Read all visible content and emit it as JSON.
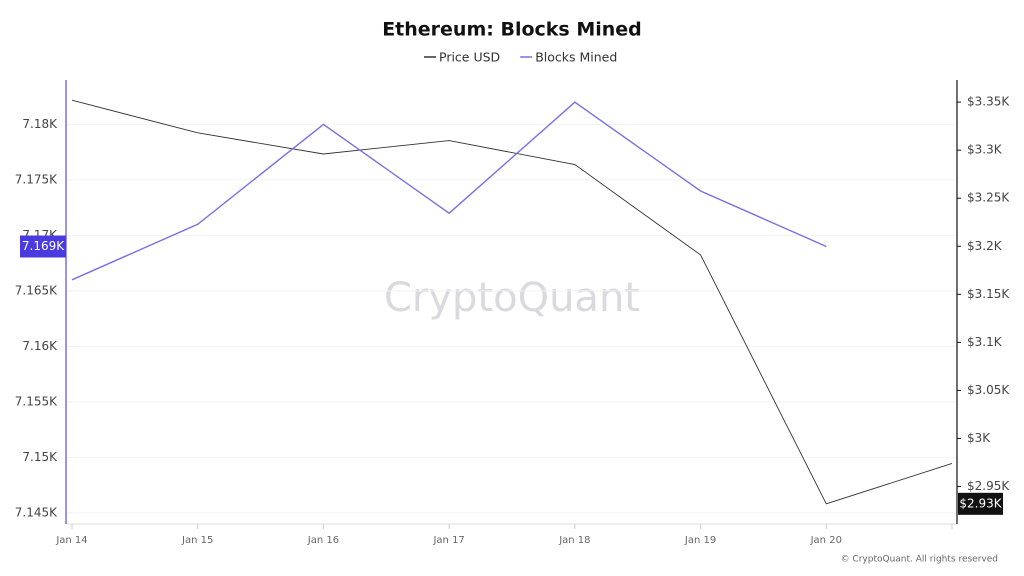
{
  "chart_data": {
    "type": "line",
    "title": "Ethereum: Blocks Mined",
    "watermark": "CryptoQuant",
    "footer": "© CryptoQuant. All rights reserved",
    "categories": [
      "Jan 14",
      "Jan 15",
      "Jan 16",
      "Jan 17",
      "Jan 18",
      "Jan 19",
      "Jan 20",
      null
    ],
    "series": [
      {
        "name": "Price USD",
        "color": "#333333",
        "axis": "y2",
        "values": [
          3352,
          3318,
          3296,
          3310,
          3285,
          3191,
          2932,
          2974
        ],
        "value_labels": [
          null,
          null,
          null,
          null,
          null,
          null,
          "$2.93K",
          null
        ]
      },
      {
        "name": "Blocks Mined",
        "color": "#7b6fe6",
        "values": [
          7166,
          7171,
          7180,
          7172,
          7182,
          7174,
          7169,
          null
        ],
        "value_labels": [
          null,
          null,
          null,
          null,
          null,
          null,
          "7.169K",
          null
        ]
      }
    ],
    "ylim": [
      7144,
      7184
    ],
    "yticks": [
      {
        "value": 7145,
        "label": "7.145K"
      },
      {
        "value": 7150,
        "label": "7.15K"
      },
      {
        "value": 7155,
        "label": "7.155K"
      },
      {
        "value": 7160,
        "label": "7.16K"
      },
      {
        "value": 7165,
        "label": "7.165K"
      },
      {
        "value": 7170,
        "label": "7.17K"
      },
      {
        "value": 7175,
        "label": "7.175K"
      },
      {
        "value": 7180,
        "label": "7.18K"
      }
    ],
    "y2lim": [
      2911,
      3373
    ],
    "y2ticks": [
      {
        "value": 2950,
        "label": "$2.95K"
      },
      {
        "value": 3000,
        "label": "$3K"
      },
      {
        "value": 3050,
        "label": "$3.05K"
      },
      {
        "value": 3100,
        "label": "$3.1K"
      },
      {
        "value": 3150,
        "label": "$3.15K"
      },
      {
        "value": 3200,
        "label": "$3.2K"
      },
      {
        "value": 3250,
        "label": "$3.25K"
      },
      {
        "value": 3300,
        "label": "$3.3K"
      },
      {
        "value": 3350,
        "label": "$3.35K"
      }
    ],
    "grid": true
  }
}
